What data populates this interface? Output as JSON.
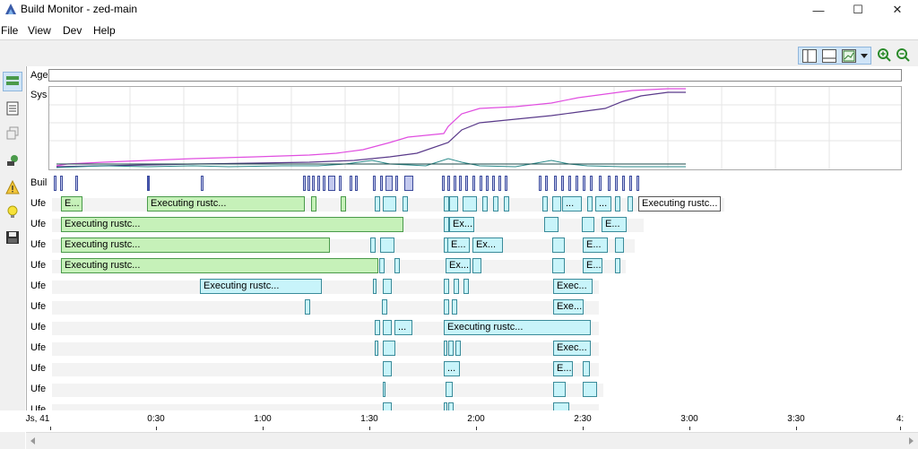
{
  "window": {
    "title": "Build Monitor - zed-main",
    "minimize": "—",
    "maximize": "☐",
    "close": "✕"
  },
  "menu": [
    "File",
    "View",
    "Dev",
    "Help"
  ],
  "rows": {
    "age": "Age",
    "sys": "Sys",
    "build": "Buil",
    "ufe": "Ufe"
  },
  "bar_labels": {
    "exec": "Executing rustc...",
    "e": "E...",
    "ex": "Ex...",
    "exe": "Exe...",
    "exec_short": "Exec...",
    "dots": "..."
  },
  "axis": {
    "start": "Js, 41",
    "ticks": [
      "0:30",
      "1:00",
      "1:30",
      "2:00",
      "2:30",
      "3:00",
      "3:30",
      "4:"
    ]
  },
  "colors": {
    "green_bar": "#c6f1b9",
    "cyan_bar": "#c8f4fa",
    "cpu_line": "#e04ee0",
    "mem_line": "#5a3a8a"
  }
}
